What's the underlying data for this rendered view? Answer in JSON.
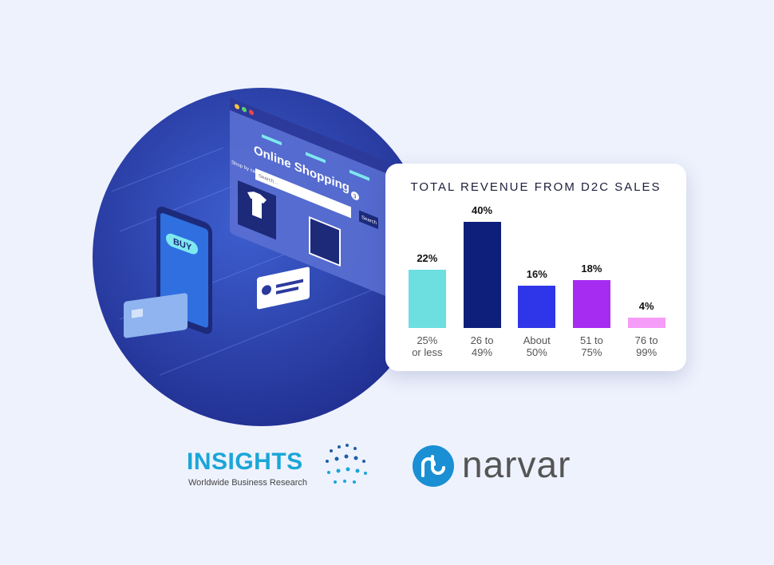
{
  "chart_data": {
    "type": "bar",
    "title": "TOTAL REVENUE FROM D2C SALES",
    "categories": [
      "25%\nor less",
      "26 to\n49%",
      "About\n50%",
      "51 to\n75%",
      "76 to\n99%"
    ],
    "values": [
      22,
      40,
      16,
      18,
      4
    ],
    "value_labels": [
      "22%",
      "40%",
      "16%",
      "18%",
      "4%"
    ],
    "colors": [
      "#6ddfe0",
      "#0d1f7a",
      "#2f35e8",
      "#a62cf2",
      "#f49cf7"
    ]
  },
  "illustration": {
    "window_title": "Online Shopping",
    "search_placeholder": "Search...",
    "shop_by": "Shop by category",
    "search_button": "Search",
    "cart_count": "3",
    "buy_button": "BUY"
  },
  "logos": {
    "insights": "INSIGHTS",
    "insights_tagline": "Worldwide Business Research",
    "narvar": "narvar"
  }
}
